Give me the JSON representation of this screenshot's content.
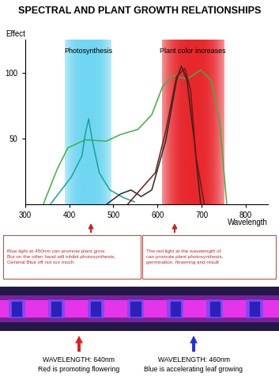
{
  "chart_data": {
    "type": "line",
    "title": "SPECTRAL AND PLANT GROWTH RELATIONSHIPS",
    "y_label": "Effect",
    "x_label": "Wavelength",
    "xlim": [
      300,
      850
    ],
    "ylim": [
      0,
      125
    ],
    "xticks": [
      300,
      400,
      500,
      600,
      700,
      800
    ],
    "yticks": [
      50,
      100
    ],
    "bands": [
      {
        "label": "Photosynthesis",
        "range": [
          390,
          495
        ],
        "color": "#6fd6f2"
      },
      {
        "label": "Plant color increases",
        "range": [
          610,
          750
        ],
        "color": "#e8262b"
      }
    ],
    "series": [
      {
        "color": "#3cb043",
        "x": [
          341,
          373,
          397,
          436,
          484,
          516,
          556,
          587,
          611,
          635,
          667,
          698,
          722,
          741,
          757
        ],
        "values": [
          0,
          27,
          43,
          49,
          48,
          53,
          57,
          68,
          89,
          98,
          95,
          102,
          94,
          62,
          0
        ]
      },
      {
        "color": "#17a398",
        "x": [
          357,
          405,
          429,
          436,
          444,
          452,
          468,
          492,
          524,
          548
        ],
        "values": [
          0,
          21,
          37,
          53,
          65,
          49,
          24,
          11,
          5,
          2
        ]
      },
      {
        "color": "#1f2e22",
        "x": [
          484,
          516,
          540,
          563,
          587,
          619,
          643,
          654,
          667,
          683,
          698
        ],
        "values": [
          0,
          8,
          11,
          6,
          11,
          49,
          94,
          105,
          94,
          49,
          0
        ]
      },
      {
        "color": "#7a1414",
        "x": [
          532,
          571,
          595,
          619,
          643,
          662,
          675,
          687,
          706
        ],
        "values": [
          0,
          15,
          24,
          56,
          97,
          103,
          87,
          37,
          0
        ]
      }
    ],
    "notes": [
      {
        "color": "#c0282d",
        "lines": [
          "Blue light at 450nm can promote plant grow.",
          "But on the other hand will inhibit photosynthesis,",
          "General Blue off not too much."
        ]
      },
      {
        "color": "#c0282d",
        "lines": [
          "The red light at the wavelength of",
          "can promote plant photosynthesis,",
          "germination, flowering and result"
        ]
      }
    ],
    "strip_labels": [
      {
        "color": "#e01e1e",
        "lines": [
          "WAVELENGTH: 640nm",
          "Red is promoting flowering"
        ]
      },
      {
        "color": "#1e2ee0",
        "lines": [
          "WAVELENGTH: 460nm",
          "Blue is accelerating leaf growing"
        ]
      }
    ]
  }
}
